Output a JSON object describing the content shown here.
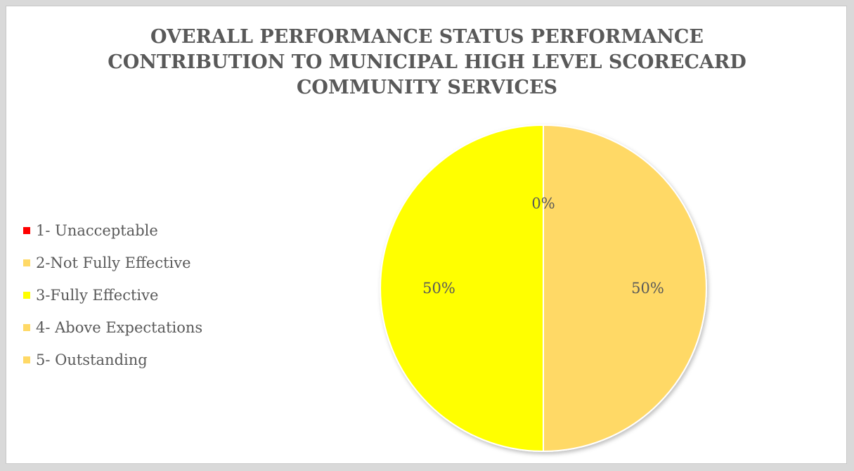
{
  "chart_data": {
    "type": "pie",
    "title_lines": [
      "OVERALL PERFORMANCE STATUS PERFORMANCE",
      "CONTRIBUTION TO MUNICIPAL HIGH LEVEL SCORECARD",
      "COMMUNITY SERVICES"
    ],
    "legend_placement": "left",
    "slices": [
      {
        "name": "1- Unacceptable",
        "value": 0,
        "label": "",
        "color": "#ff0000"
      },
      {
        "name": "2-Not Fully Effective",
        "value": 0,
        "label": "0%",
        "color": "#ffd966"
      },
      {
        "name": "3-Fully Effective",
        "value": 0,
        "label": "",
        "color": "#ffff00"
      },
      {
        "name": "4- Above Expectations",
        "value": 50,
        "label": "50%",
        "color": "#ffd966"
      },
      {
        "name": "5- Outstanding",
        "value": 0,
        "label": "",
        "color": "#ffd966"
      },
      {
        "name": "3-Fully Effective",
        "value": 50,
        "label": "50%",
        "color": "#ffff00"
      }
    ]
  }
}
